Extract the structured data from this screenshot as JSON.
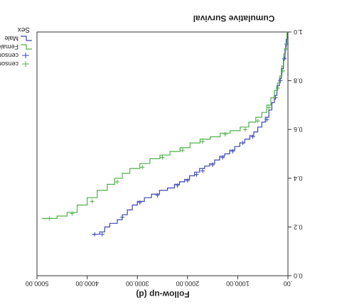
{
  "chart_data": {
    "type": "line",
    "orientation_note": "image rotated 180 degrees",
    "title": "",
    "xlabel": "Follow-up (d)",
    "ylabel": "Cumulative Survival",
    "xlim": [
      0,
      5000
    ],
    "ylim": [
      0.0,
      1.0
    ],
    "x_ticks": [
      0,
      1000,
      2000,
      3000,
      4000,
      5000
    ],
    "x_tick_labels": [
      ".00",
      "1000.00",
      "2000.00",
      "3000.00",
      "4000.00",
      "5000.00"
    ],
    "y_ticks": [
      0.0,
      0.2,
      0.4,
      0.6,
      0.8,
      1.0
    ],
    "y_tick_labels": [
      "0.0",
      "0.2",
      "0.4",
      "0.6",
      "0.8",
      "1.0"
    ],
    "legend_title": "Sex",
    "legend_position": "right",
    "series": [
      {
        "name": "Male",
        "color": "#3b47b0",
        "points": [
          [
            0,
            1.0
          ],
          [
            15,
            0.97
          ],
          [
            35,
            0.93
          ],
          [
            60,
            0.89
          ],
          [
            90,
            0.85
          ],
          [
            130,
            0.81
          ],
          [
            170,
            0.78
          ],
          [
            220,
            0.74
          ],
          [
            270,
            0.71
          ],
          [
            320,
            0.68
          ],
          [
            380,
            0.65
          ],
          [
            450,
            0.63
          ],
          [
            520,
            0.61
          ],
          [
            600,
            0.59
          ],
          [
            680,
            0.575
          ],
          [
            760,
            0.56
          ],
          [
            860,
            0.545
          ],
          [
            960,
            0.53
          ],
          [
            1060,
            0.515
          ],
          [
            1160,
            0.5
          ],
          [
            1260,
            0.49
          ],
          [
            1360,
            0.475
          ],
          [
            1460,
            0.46
          ],
          [
            1560,
            0.45
          ],
          [
            1660,
            0.44
          ],
          [
            1760,
            0.425
          ],
          [
            1860,
            0.41
          ],
          [
            1960,
            0.395
          ],
          [
            2060,
            0.385
          ],
          [
            2160,
            0.375
          ],
          [
            2260,
            0.36
          ],
          [
            2400,
            0.35
          ],
          [
            2560,
            0.335
          ],
          [
            2720,
            0.32
          ],
          [
            2860,
            0.305
          ],
          [
            3000,
            0.29
          ],
          [
            3100,
            0.27
          ],
          [
            3200,
            0.25
          ],
          [
            3300,
            0.23
          ],
          [
            3400,
            0.215
          ],
          [
            3550,
            0.2
          ],
          [
            3650,
            0.18
          ],
          [
            3750,
            0.17
          ],
          [
            3900,
            0.17
          ]
        ],
        "censored": [
          [
            30,
            0.95
          ],
          [
            70,
            0.89
          ],
          [
            150,
            0.8
          ],
          [
            250,
            0.73
          ],
          [
            420,
            0.64
          ],
          [
            700,
            0.57
          ],
          [
            900,
            0.545
          ],
          [
            1100,
            0.51
          ],
          [
            1300,
            0.485
          ],
          [
            1500,
            0.455
          ],
          [
            1700,
            0.43
          ],
          [
            1820,
            0.415
          ],
          [
            2000,
            0.39
          ],
          [
            2200,
            0.37
          ],
          [
            2600,
            0.33
          ],
          [
            2950,
            0.3
          ],
          [
            3300,
            0.24
          ],
          [
            3700,
            0.17
          ],
          [
            3850,
            0.17
          ]
        ]
      },
      {
        "name": "Female",
        "color": "#4fb04a",
        "points": [
          [
            0,
            1.0
          ],
          [
            20,
            0.95
          ],
          [
            50,
            0.91
          ],
          [
            85,
            0.86
          ],
          [
            120,
            0.82
          ],
          [
            160,
            0.79
          ],
          [
            210,
            0.76
          ],
          [
            270,
            0.73
          ],
          [
            340,
            0.7
          ],
          [
            420,
            0.67
          ],
          [
            520,
            0.65
          ],
          [
            640,
            0.63
          ],
          [
            780,
            0.61
          ],
          [
            950,
            0.595
          ],
          [
            1150,
            0.585
          ],
          [
            1350,
            0.57
          ],
          [
            1550,
            0.56
          ],
          [
            1750,
            0.545
          ],
          [
            1950,
            0.525
          ],
          [
            2150,
            0.51
          ],
          [
            2350,
            0.495
          ],
          [
            2550,
            0.48
          ],
          [
            2750,
            0.46
          ],
          [
            2950,
            0.44
          ],
          [
            3150,
            0.42
          ],
          [
            3300,
            0.4
          ],
          [
            3450,
            0.375
          ],
          [
            3600,
            0.35
          ],
          [
            3800,
            0.32
          ],
          [
            4000,
            0.29
          ],
          [
            4200,
            0.26
          ],
          [
            4400,
            0.245
          ],
          [
            4600,
            0.235
          ],
          [
            4900,
            0.235
          ]
        ],
        "censored": [
          [
            40,
            0.93
          ],
          [
            100,
            0.84
          ],
          [
            200,
            0.77
          ],
          [
            380,
            0.69
          ],
          [
            600,
            0.635
          ],
          [
            850,
            0.6
          ],
          [
            1250,
            0.58
          ],
          [
            1700,
            0.55
          ],
          [
            2100,
            0.515
          ],
          [
            2500,
            0.485
          ],
          [
            2900,
            0.445
          ],
          [
            3400,
            0.385
          ],
          [
            3900,
            0.305
          ],
          [
            4300,
            0.255
          ],
          [
            4750,
            0.235
          ]
        ]
      }
    ],
    "legend": [
      {
        "label": "Male",
        "kind": "line",
        "color": "#3b47b0"
      },
      {
        "label": "Female",
        "kind": "line",
        "color": "#4fb04a"
      },
      {
        "label": "censored",
        "kind": "marker",
        "color": "#3b47b0"
      },
      {
        "label": "censored",
        "kind": "marker",
        "color": "#4fb04a"
      }
    ]
  }
}
